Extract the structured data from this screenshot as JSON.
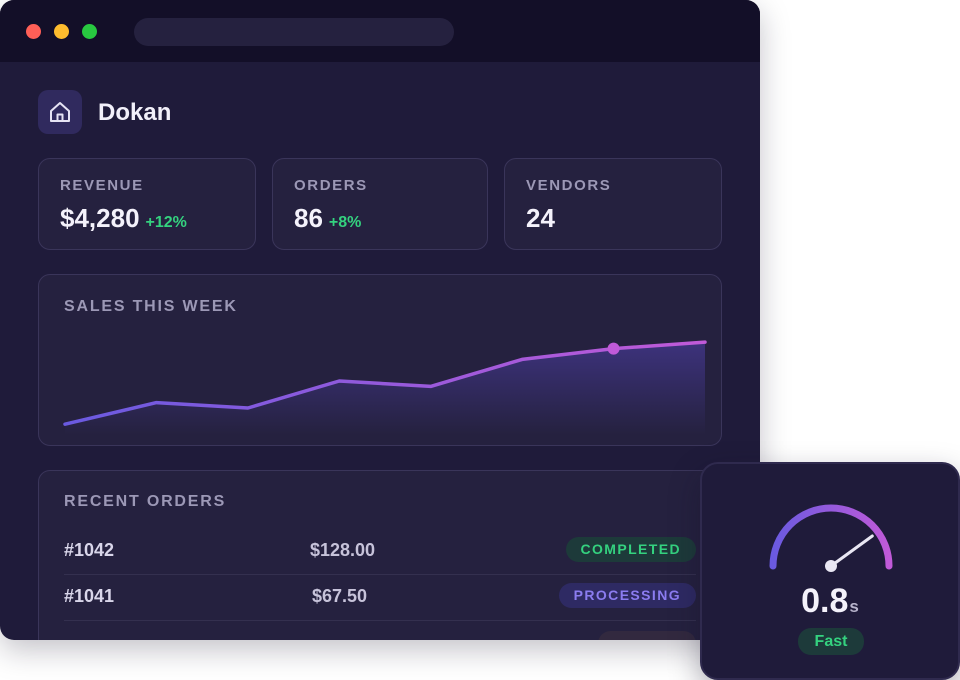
{
  "app": {
    "name": "Dokan"
  },
  "stats": [
    {
      "label": "REVENUE",
      "value": "$4,280",
      "delta": "+12%"
    },
    {
      "label": "ORDERS",
      "value": "86",
      "delta": "+8%"
    },
    {
      "label": "VENDORS",
      "value": "24",
      "delta": ""
    }
  ],
  "chart": {
    "title": "SALES THIS WEEK",
    "line_color_start": "#6a5ae0",
    "line_color_end": "#c05ad8"
  },
  "chart_data": {
    "type": "area",
    "title": "SALES THIS WEEK",
    "x": [
      1,
      2,
      3,
      4,
      5,
      6,
      7,
      8
    ],
    "values": [
      10,
      30,
      25,
      50,
      45,
      70,
      80,
      86
    ],
    "highlight_index": 6,
    "ylim": [
      0,
      100
    ],
    "grid": false,
    "legend": "none"
  },
  "orders": {
    "title": "RECENT ORDERS",
    "rows": [
      {
        "id": "#1042",
        "amount": "$128.00",
        "status": "COMPLETED",
        "status_color": "#34d27f"
      },
      {
        "id": "#1041",
        "amount": "$67.50",
        "status": "PROCESSING",
        "status_color": "#8b7cf0"
      }
    ]
  },
  "gauge": {
    "value": "0.8",
    "unit": "s",
    "label": "Fast",
    "level": 0.8,
    "color_start": "#6a5ae0",
    "color_end": "#c05ad8"
  }
}
